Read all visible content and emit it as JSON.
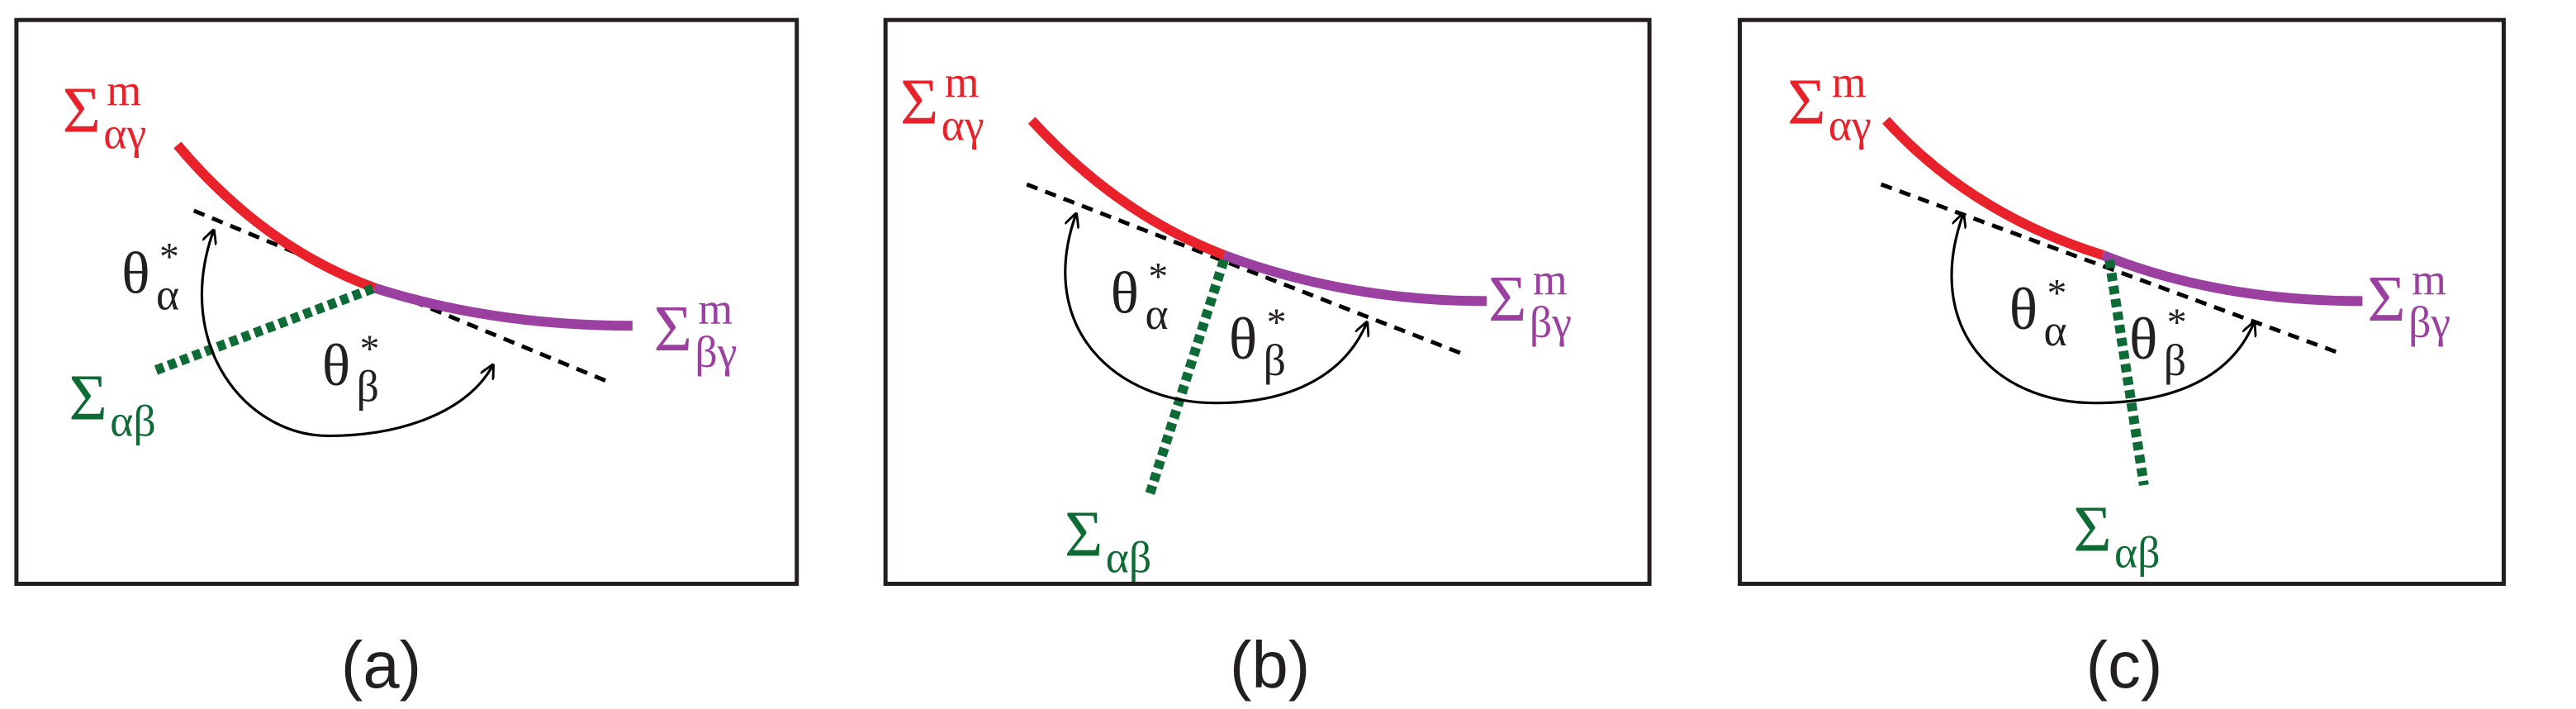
{
  "panels": [
    {
      "caption": "(a)",
      "labels": {
        "sigma_ag": {
          "base": "Σ",
          "sub": "αγ",
          "sup": "m"
        },
        "sigma_bg": {
          "base": "Σ",
          "sub": "βγ",
          "sup": "m"
        },
        "sigma_ab": {
          "base": "Σ",
          "sub": "αβ"
        },
        "theta_a": {
          "base": "θ",
          "sub": "α",
          "sup": "*"
        },
        "theta_b": {
          "base": "θ",
          "sub": "β",
          "sup": "*"
        }
      }
    },
    {
      "caption": "(b)",
      "labels": {
        "sigma_ag": {
          "base": "Σ",
          "sub": "αγ",
          "sup": "m"
        },
        "sigma_bg": {
          "base": "Σ",
          "sub": "βγ",
          "sup": "m"
        },
        "sigma_ab": {
          "base": "Σ",
          "sub": "αβ"
        },
        "theta_a": {
          "base": "θ",
          "sub": "α",
          "sup": "*"
        },
        "theta_b": {
          "base": "θ",
          "sub": "β",
          "sup": "*"
        }
      }
    },
    {
      "caption": "(c)",
      "labels": {
        "sigma_ag": {
          "base": "Σ",
          "sub": "αγ",
          "sup": "m"
        },
        "sigma_bg": {
          "base": "Σ",
          "sub": "βγ",
          "sup": "m"
        },
        "sigma_ab": {
          "base": "Σ",
          "sub": "αβ"
        },
        "theta_a": {
          "base": "θ",
          "sub": "α",
          "sup": "*"
        },
        "theta_b": {
          "base": "θ",
          "sub": "β",
          "sup": "*"
        }
      }
    }
  ]
}
